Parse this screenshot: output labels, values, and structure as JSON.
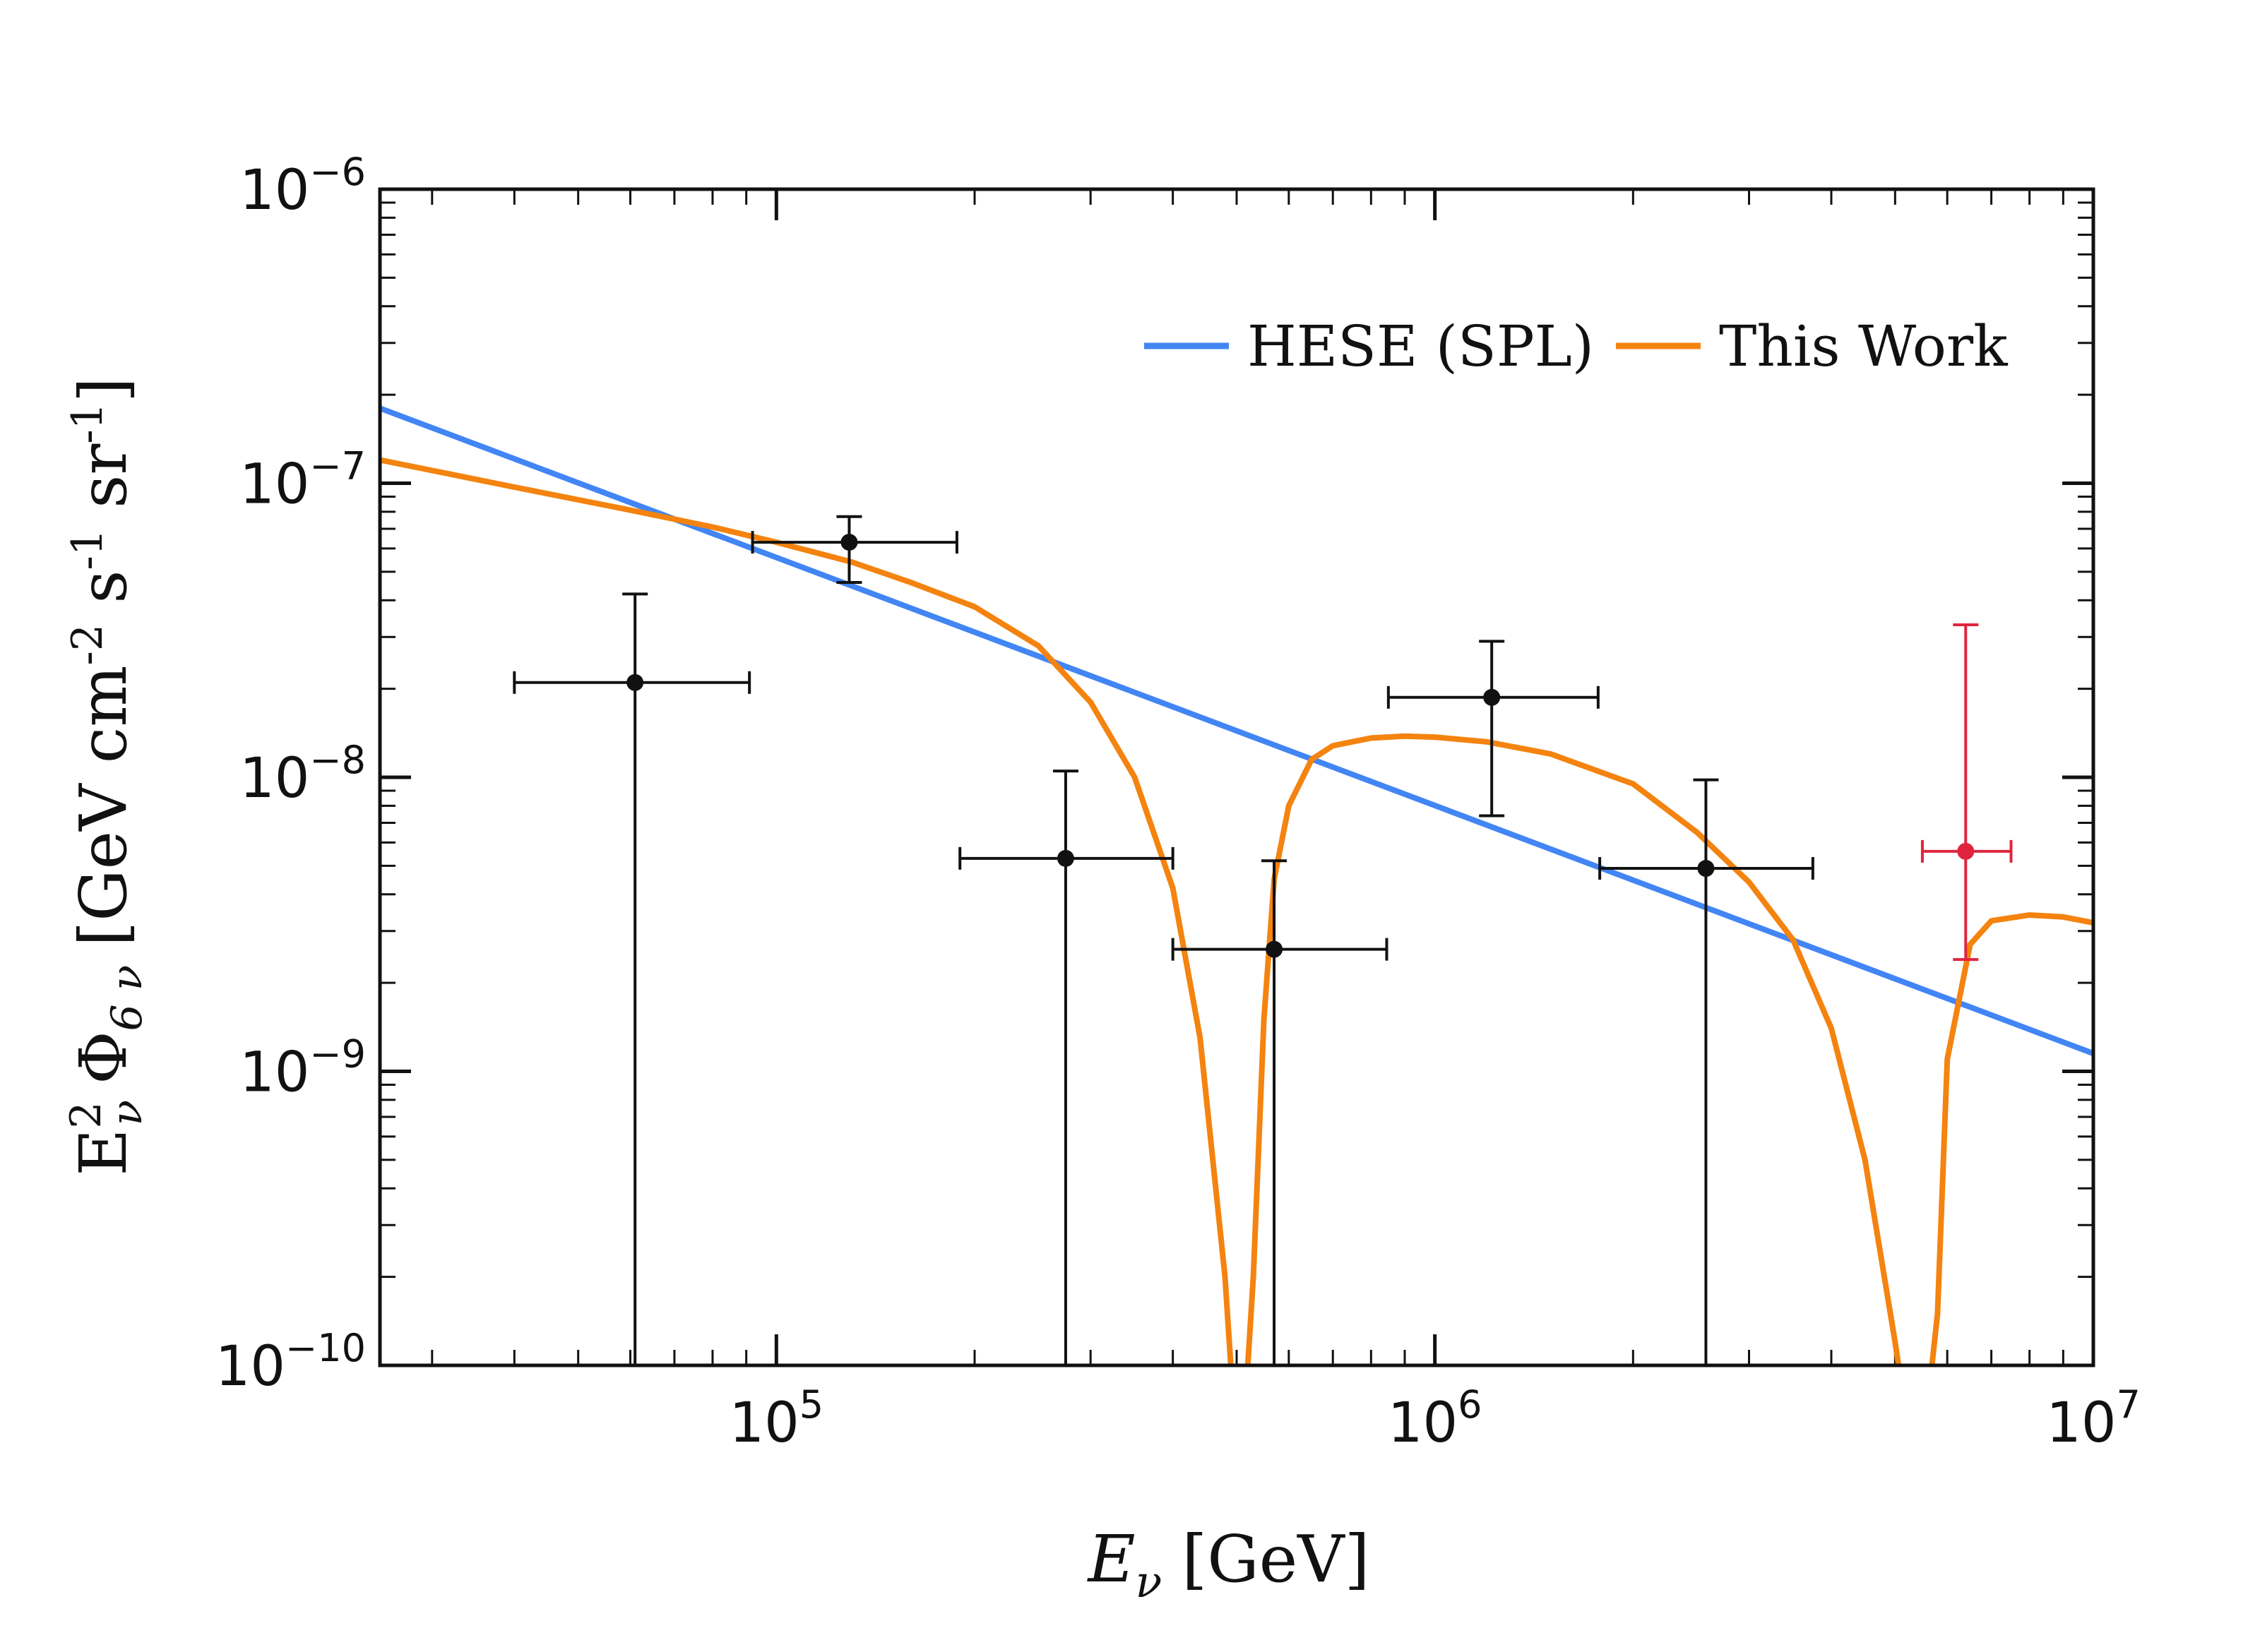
{
  "chart_data": {
    "type": "line",
    "xscale": "log",
    "yscale": "log",
    "xlim": [
      25000,
      10000000
    ],
    "ylim": [
      1e-10,
      1e-06
    ],
    "xlabel": {
      "main": "E",
      "sub": "ν",
      "rest": "[GeV]"
    },
    "ylabel": {
      "parts": [
        "E",
        "2",
        "ν",
        "Φ",
        "6 ν",
        "[GeV cm",
        "-2",
        " s",
        "-1",
        " sr",
        "-1",
        "]"
      ]
    },
    "x_ticks": [
      {
        "value": 100000,
        "base": "10",
        "exp": "5"
      },
      {
        "value": 1000000,
        "base": "10",
        "exp": "6"
      },
      {
        "value": 10000000,
        "base": "10",
        "exp": "7"
      }
    ],
    "y_ticks": [
      {
        "value": 1e-06,
        "base": "10",
        "exp": "−6"
      },
      {
        "value": 1e-07,
        "base": "10",
        "exp": "−7"
      },
      {
        "value": 1e-08,
        "base": "10",
        "exp": "−8"
      },
      {
        "value": 1e-09,
        "base": "10",
        "exp": "−9"
      },
      {
        "value": 1e-10,
        "base": "10",
        "exp": "−10"
      }
    ],
    "legend": {
      "position": "top-right",
      "entries": [
        {
          "label": "HESE (SPL)",
          "color": "#4285f4"
        },
        {
          "label": "This Work",
          "color": "#f4830f"
        }
      ]
    },
    "series": [
      {
        "name": "HESE (SPL)",
        "color": "#4285f4",
        "x": [
          25000,
          10000000
        ],
        "y": [
          1.8e-07,
          1.15e-09
        ]
      },
      {
        "name": "This Work",
        "color": "#f4830f",
        "x": [
          25000,
          40000,
          60000,
          80000,
          100000,
          130000,
          160000,
          200000,
          250000,
          300000,
          350000,
          400000,
          440000,
          480000,
          500000,
          510000,
          530000,
          550000,
          570000,
          600000,
          650000,
          700000,
          800000,
          900000,
          1000000,
          1200000,
          1500000,
          2000000,
          2500000,
          3000000,
          3500000,
          4000000,
          4500000,
          5000000,
          5300000,
          5500000,
          5800000,
          6000000,
          6500000,
          7000000,
          8000000,
          9000000,
          10000000
        ],
        "y": [
          1.2e-07,
          9.7e-08,
          8.1e-08,
          7.1e-08,
          6.3e-08,
          5.4e-08,
          4.6e-08,
          3.8e-08,
          2.8e-08,
          1.8e-08,
          1e-08,
          4.2e-09,
          1.3e-09,
          2e-10,
          5e-11,
          5e-11,
          2e-10,
          1.5e-09,
          4.5e-09,
          8e-09,
          1.15e-08,
          1.28e-08,
          1.36e-08,
          1.38e-08,
          1.37e-08,
          1.32e-08,
          1.2e-08,
          9.5e-09,
          6.5e-09,
          4.4e-09,
          2.8e-09,
          1.4e-09,
          5e-10,
          1.2e-10,
          5e-11,
          5e-11,
          1.5e-10,
          1.1e-09,
          2.7e-09,
          3.25e-09,
          3.4e-09,
          3.35e-09,
          3.2e-09
        ]
      }
    ],
    "data_points": [
      {
        "x": 61000,
        "y": 2.1e-08,
        "x_low": 40000,
        "x_high": 91000,
        "y_low": 1e-10,
        "y_high": 4.2e-08,
        "color": "#111111"
      },
      {
        "x": 129000,
        "y": 6.3e-08,
        "x_low": 92000,
        "x_high": 188000,
        "y_low": 4.6e-08,
        "y_high": 7.7e-08,
        "color": "#111111"
      },
      {
        "x": 275000,
        "y": 5.3e-09,
        "x_low": 190000,
        "x_high": 400000,
        "y_low": 1e-10,
        "y_high": 1.05e-08,
        "color": "#111111"
      },
      {
        "x": 570000,
        "y": 2.6e-09,
        "x_low": 400000,
        "x_high": 845000,
        "y_low": 1e-10,
        "y_high": 5.2e-09,
        "color": "#111111"
      },
      {
        "x": 1220000,
        "y": 1.87e-08,
        "x_low": 850000,
        "x_high": 1770000,
        "y_low": 7.4e-09,
        "y_high": 2.9e-08,
        "color": "#111111"
      },
      {
        "x": 2580000,
        "y": 4.9e-09,
        "x_low": 1780000,
        "x_high": 3750000,
        "y_low": 1e-10,
        "y_high": 9.8e-09,
        "color": "#111111"
      },
      {
        "x": 6400000,
        "y": 5.6e-09,
        "x_low": 5500000,
        "x_high": 7500000,
        "y_low": 2.4e-09,
        "y_high": 3.3e-08,
        "color": "#e0243f"
      }
    ]
  }
}
